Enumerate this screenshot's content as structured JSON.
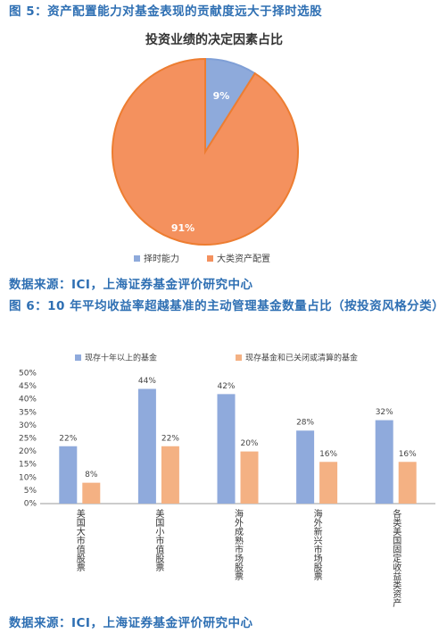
{
  "chart_data": [
    {
      "type": "pie",
      "caption": "图 5：资产配置能力对基金表现的贡献度远大于择时选股",
      "title": "投资业绩的决定因素占比",
      "categories": [
        "择时能力",
        "大类资产配置"
      ],
      "values": [
        9,
        91
      ],
      "value_labels": [
        "9%",
        "91%"
      ],
      "colors": [
        "#8eaadb",
        "#f4915e"
      ],
      "source": "数据来源：ICI，上海证券基金评价研究中心"
    },
    {
      "type": "bar",
      "caption": "图 6：10 年平均收益率超越基准的主动管理基金数量占比（按投资风格分类）",
      "categories": [
        "美国大市值股票",
        "美国小市值股票",
        "海外成熟市场股票",
        "海外新兴市场股票",
        "各类美国固定收益类资产"
      ],
      "series": [
        {
          "name": "现存十年以上的基金",
          "color": "#8faadc",
          "values": [
            22,
            44,
            42,
            28,
            32
          ],
          "value_labels": [
            "22%",
            "44%",
            "42%",
            "28%",
            "32%"
          ]
        },
        {
          "name": "现存基金和已关闭或清算的基金",
          "color": "#f4b183",
          "values": [
            8,
            22,
            20,
            16,
            16
          ],
          "value_labels": [
            "8%",
            "22%",
            "20%",
            "16%",
            "16%"
          ]
        }
      ],
      "ylim": [
        0,
        50
      ],
      "yticks": [
        {
          "value": 0,
          "label": "0%"
        },
        {
          "value": 5,
          "label": "5%"
        },
        {
          "value": 10,
          "label": "10%"
        },
        {
          "value": 15,
          "label": "15%"
        },
        {
          "value": 20,
          "label": "20%"
        },
        {
          "value": 25,
          "label": "25%"
        },
        {
          "value": 30,
          "label": "30%"
        },
        {
          "value": 35,
          "label": "35%"
        },
        {
          "value": 40,
          "label": "40%"
        },
        {
          "value": 45,
          "label": "45%"
        },
        {
          "value": 50,
          "label": "50%"
        }
      ],
      "source": "数据来源：ICI，上海证券基金评价研究中心"
    }
  ]
}
